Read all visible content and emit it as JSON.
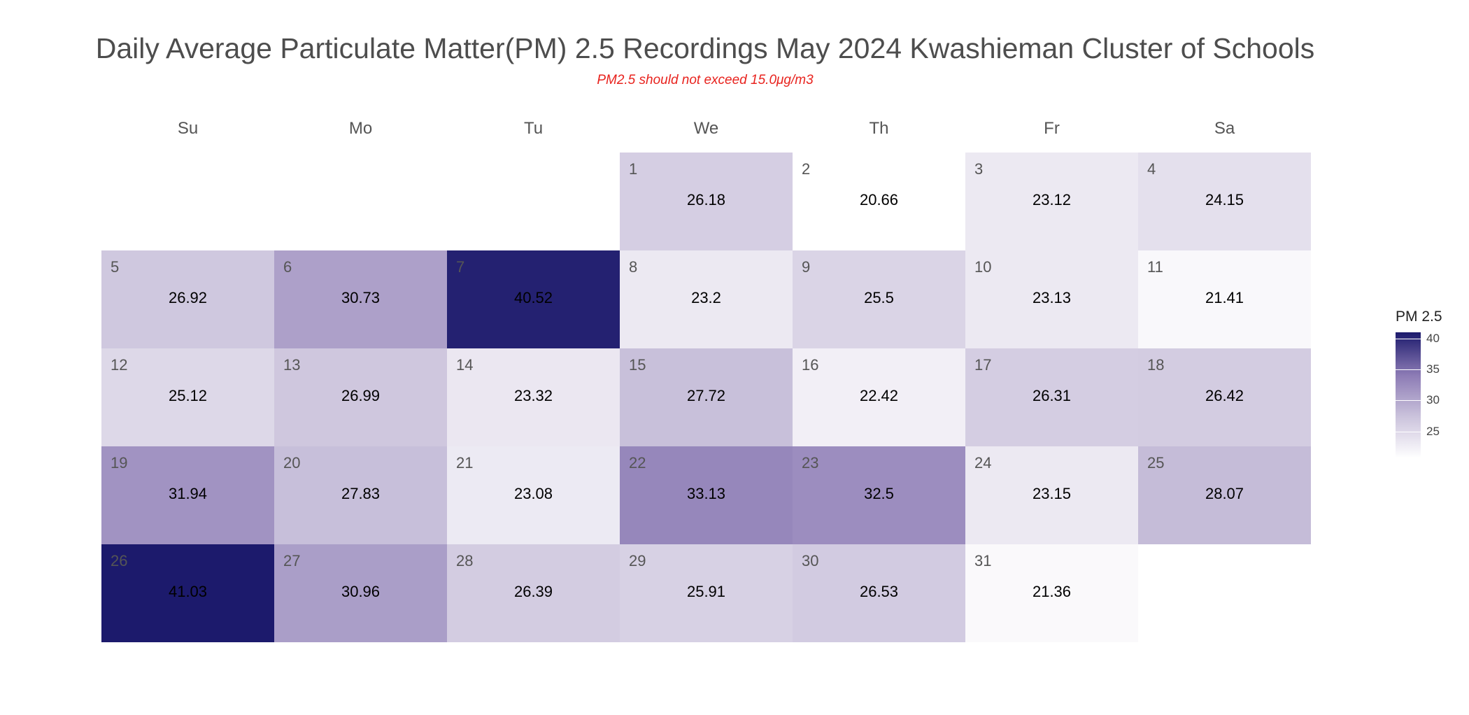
{
  "chart_data": {
    "type": "heatmap",
    "title": "Daily Average Particulate Matter(PM) 2.5 Recordings May 2024 Kwashieman Cluster of Schools",
    "subtitle": "PM2.5 should not exceed 15.0μg/m3",
    "weekdays": [
      "Su",
      "Mo",
      "Tu",
      "We",
      "Th",
      "Fr",
      "Sa"
    ],
    "first_weekday_index": 3,
    "days": [
      {
        "day": "1",
        "value": 26.18
      },
      {
        "day": "2",
        "value": 20.66
      },
      {
        "day": "3",
        "value": 23.12
      },
      {
        "day": "4",
        "value": 24.15
      },
      {
        "day": "5",
        "value": 26.92
      },
      {
        "day": "6",
        "value": 30.73
      },
      {
        "day": "7",
        "value": 40.52
      },
      {
        "day": "8",
        "value": 23.2
      },
      {
        "day": "9",
        "value": 25.5
      },
      {
        "day": "10",
        "value": 23.13
      },
      {
        "day": "11",
        "value": 21.41
      },
      {
        "day": "12",
        "value": 25.12
      },
      {
        "day": "13",
        "value": 26.99
      },
      {
        "day": "14",
        "value": 23.32
      },
      {
        "day": "15",
        "value": 27.72
      },
      {
        "day": "16",
        "value": 22.42
      },
      {
        "day": "17",
        "value": 26.31
      },
      {
        "day": "18",
        "value": 26.42
      },
      {
        "day": "19",
        "value": 31.94
      },
      {
        "day": "20",
        "value": 27.83
      },
      {
        "day": "21",
        "value": 23.08
      },
      {
        "day": "22",
        "value": 33.13
      },
      {
        "day": "23",
        "value": 32.5
      },
      {
        "day": "24",
        "value": 23.15
      },
      {
        "day": "25",
        "value": 28.07
      },
      {
        "day": "26",
        "value": 41.03
      },
      {
        "day": "27",
        "value": 30.96
      },
      {
        "day": "28",
        "value": 26.39
      },
      {
        "day": "29",
        "value": 25.91
      },
      {
        "day": "30",
        "value": 26.53
      },
      {
        "day": "31",
        "value": 21.36
      }
    ],
    "legend": {
      "title": "PM 2.5",
      "ticks": [
        "25",
        "30",
        "35",
        "40"
      ],
      "min": 20.66,
      "max": 41.03,
      "colors": [
        "#ffffff",
        "#cbc3dc",
        "#8c7bb5",
        "#1c1a6c"
      ]
    },
    "colors": {
      "title": "#4d4d4d",
      "subtitle": "#e8231e"
    }
  }
}
